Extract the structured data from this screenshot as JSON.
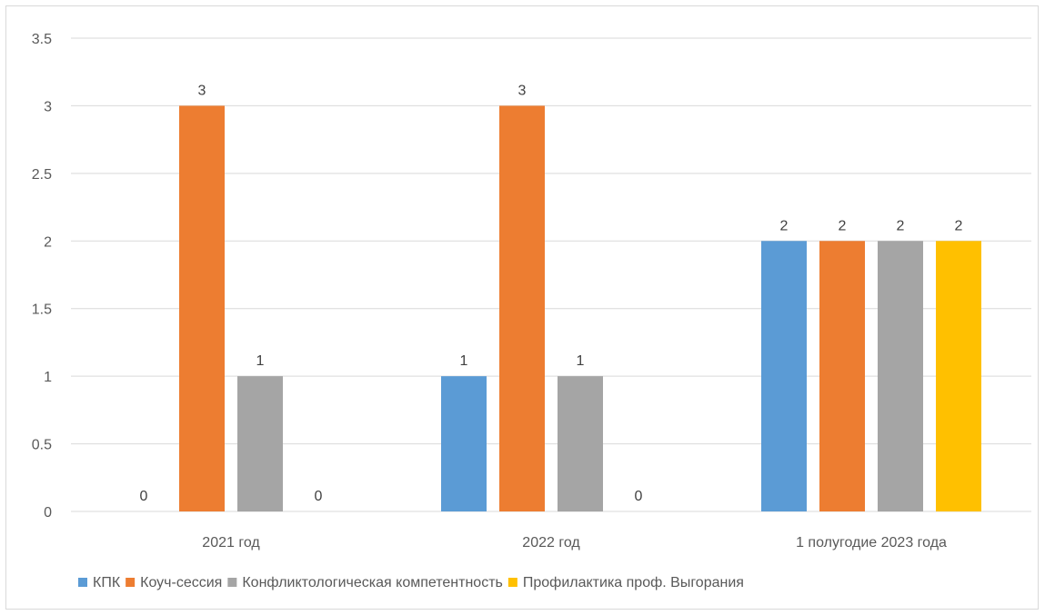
{
  "chart_data": {
    "type": "bar",
    "categories": [
      "2021 год",
      "2022 год",
      "1 полугодие 2023 года"
    ],
    "series": [
      {
        "name": "КПК",
        "values": [
          0,
          1,
          2
        ],
        "color": "#5B9BD5"
      },
      {
        "name": "Коуч-сессия",
        "values": [
          3,
          3,
          2
        ],
        "color": "#ED7D31"
      },
      {
        "name": "Конфликтологическая компетентность",
        "values": [
          1,
          1,
          2
        ],
        "color": "#A5A5A5"
      },
      {
        "name": "Профилактика проф. Выгорания",
        "values": [
          0,
          0,
          2
        ],
        "color": "#FFC000"
      }
    ],
    "y_ticks": [
      "0",
      "0.5",
      "1",
      "1.5",
      "2",
      "2.5",
      "3",
      "3.5"
    ],
    "ylim": [
      0,
      3.5
    ],
    "grid": true,
    "data_labels": true,
    "legend_position": "bottom",
    "title": "",
    "xlabel": "",
    "ylabel": ""
  }
}
